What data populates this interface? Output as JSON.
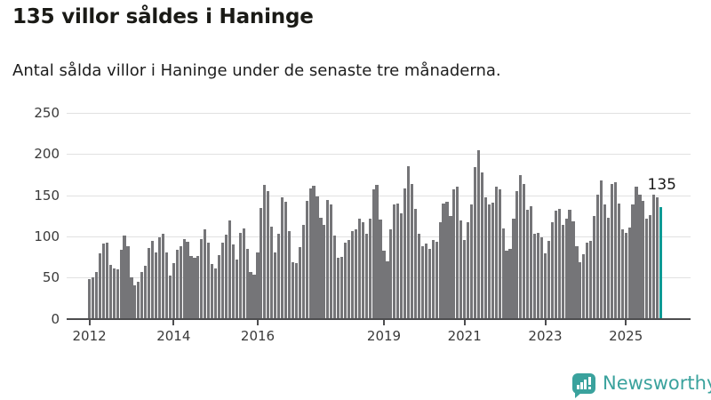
{
  "header": {
    "title": "135 villor såldes i Haninge",
    "subtitle": "Antal sålda villor i Haninge under de senaste tre månaderna."
  },
  "chart_data": {
    "type": "bar",
    "title": "135 villor såldes i Haninge",
    "subtitle": "Antal sålda villor i Haninge under de senaste tre månaderna.",
    "ylabel": "",
    "xlabel": "",
    "ylim": [
      0,
      250
    ],
    "y_ticks": [
      0,
      50,
      100,
      150,
      200,
      250
    ],
    "grid": "horizontal",
    "bar_color": "#757578",
    "values": [
      48,
      50,
      57,
      79,
      91,
      92,
      65,
      61,
      60,
      84,
      101,
      88,
      50,
      41,
      45,
      57,
      64,
      86,
      94,
      80,
      99,
      103,
      80,
      52,
      68,
      84,
      88,
      97,
      93,
      76,
      74,
      76,
      97,
      108,
      92,
      66,
      61,
      77,
      92,
      102,
      119,
      90,
      72,
      104,
      110,
      85,
      57,
      53,
      81,
      134,
      163,
      155,
      112,
      81,
      103,
      147,
      142,
      106,
      69,
      67,
      87,
      114,
      143,
      158,
      161,
      148,
      123,
      114,
      144,
      139,
      101,
      74,
      75,
      92,
      96,
      106,
      108,
      121,
      117,
      103,
      121,
      157,
      163,
      120,
      83,
      70,
      108,
      139,
      140,
      128,
      158,
      185,
      164,
      133,
      103,
      88,
      91,
      85,
      96,
      93,
      117,
      140,
      142,
      125,
      157,
      160,
      119,
      96,
      117,
      139,
      184,
      205,
      178,
      147,
      139,
      141,
      160,
      157,
      110,
      83,
      85,
      121,
      155,
      174,
      164,
      132,
      137,
      103,
      104,
      99,
      79,
      95,
      117,
      131,
      133,
      114,
      121,
      132,
      118,
      88,
      69,
      78,
      92,
      94,
      125,
      151,
      168,
      139,
      123,
      164,
      166,
      140,
      108,
      104,
      111,
      139,
      160,
      151,
      143,
      121,
      126,
      151,
      147,
      135
    ],
    "x_ticks": [
      {
        "label": "2012",
        "index": 0
      },
      {
        "label": "2014",
        "index": 24
      },
      {
        "label": "2016",
        "index": 48
      },
      {
        "label": "2019",
        "index": 84
      },
      {
        "label": "2021",
        "index": 107
      },
      {
        "label": "2023",
        "index": 130
      },
      {
        "label": "2025",
        "index": 153
      }
    ],
    "highlight": {
      "index": 163,
      "label": "135",
      "color": "#0d9b95"
    }
  },
  "footer": {
    "brand": "Newsworthy",
    "brand_color": "#3aa29d",
    "icon": "newsworthy-speech-bubble-chart-icon"
  }
}
